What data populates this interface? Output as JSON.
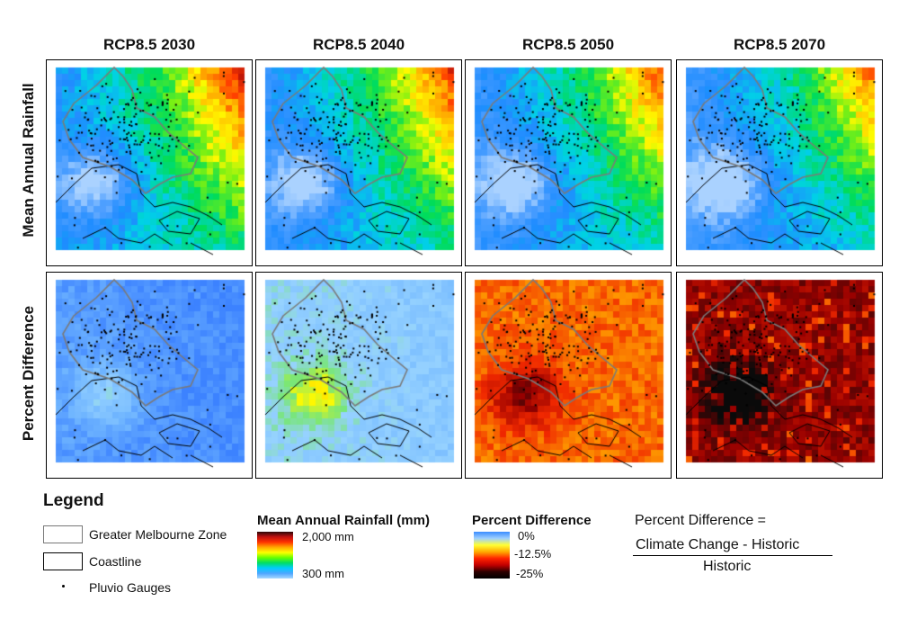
{
  "columns": [
    "RCP8.5 2030",
    "RCP8.5 2040",
    "RCP8.5 2050",
    "RCP8.5 2070"
  ],
  "rows": [
    "Mean Annual Rainfall",
    "Percent Difference"
  ],
  "legend": {
    "title": "Legend",
    "items": [
      {
        "symbol": "gray-outline-box",
        "label": "Greater Melbourne Zone"
      },
      {
        "symbol": "black-outline-box",
        "label": "Coastline"
      },
      {
        "symbol": "dot",
        "label": "Pluvio Gauges"
      }
    ]
  },
  "rainfall_scale": {
    "title": "Mean Annual Rainfall (mm)",
    "max_label": "2,000 mm",
    "min_label": "300 mm",
    "colors_top_to_bottom": [
      "#2a0808",
      "#c01010",
      "#ff3300",
      "#ffaa00",
      "#ffff00",
      "#66ff00",
      "#00dd66",
      "#00ccff",
      "#4da6ff",
      "#a8d8ff"
    ]
  },
  "percent_scale": {
    "title": "Percent Difference",
    "labels": [
      "0%",
      "-12.5%",
      "-25%"
    ],
    "colors_top_to_bottom": [
      "#3a8cff",
      "#9fd0ff",
      "#ffff33",
      "#ffaa00",
      "#ff2200",
      "#c00000",
      "#2b0000",
      "#000000"
    ]
  },
  "formula": {
    "lhs": "Percent Difference =",
    "numerator": "Climate Change - Historic",
    "denominator": "Historic"
  }
}
